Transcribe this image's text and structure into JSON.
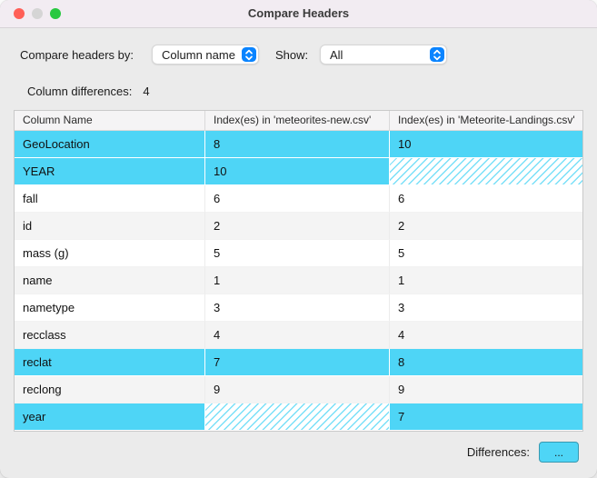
{
  "window": {
    "title": "Compare Headers"
  },
  "toolbar": {
    "compare_by_label": "Compare headers by:",
    "compare_by_value": "Column name",
    "show_label": "Show:",
    "show_value": "All"
  },
  "summary": {
    "label": "Column differences:",
    "value": "4"
  },
  "table": {
    "columns": [
      "Column Name",
      "Index(es) in 'meteorites-new.csv'",
      "Index(es) in 'Meteorite-Landings.csv'"
    ],
    "rows": [
      {
        "name": "GeoLocation",
        "idx_new": "8",
        "idx_landings": "10",
        "highlight": true,
        "hatch_new": false,
        "hatch_landings": false
      },
      {
        "name": "YEAR",
        "idx_new": "10",
        "idx_landings": "",
        "highlight": true,
        "hatch_new": false,
        "hatch_landings": true
      },
      {
        "name": "fall",
        "idx_new": "6",
        "idx_landings": "6",
        "highlight": false,
        "hatch_new": false,
        "hatch_landings": false
      },
      {
        "name": "id",
        "idx_new": "2",
        "idx_landings": "2",
        "highlight": false,
        "hatch_new": false,
        "hatch_landings": false
      },
      {
        "name": "mass (g)",
        "idx_new": "5",
        "idx_landings": "5",
        "highlight": false,
        "hatch_new": false,
        "hatch_landings": false
      },
      {
        "name": "name",
        "idx_new": "1",
        "idx_landings": "1",
        "highlight": false,
        "hatch_new": false,
        "hatch_landings": false
      },
      {
        "name": "nametype",
        "idx_new": "3",
        "idx_landings": "3",
        "highlight": false,
        "hatch_new": false,
        "hatch_landings": false
      },
      {
        "name": "recclass",
        "idx_new": "4",
        "idx_landings": "4",
        "highlight": false,
        "hatch_new": false,
        "hatch_landings": false
      },
      {
        "name": "reclat",
        "idx_new": "7",
        "idx_landings": "8",
        "highlight": true,
        "hatch_new": false,
        "hatch_landings": false
      },
      {
        "name": "reclong",
        "idx_new": "9",
        "idx_landings": "9",
        "highlight": false,
        "hatch_new": false,
        "hatch_landings": false
      },
      {
        "name": "year",
        "idx_new": "",
        "idx_landings": "7",
        "highlight": true,
        "hatch_new": true,
        "hatch_landings": false
      }
    ]
  },
  "footer": {
    "label": "Differences:",
    "button_label": "..."
  },
  "colors": {
    "highlight": "#4ed5f6",
    "accent_blue": "#0a84ff"
  }
}
